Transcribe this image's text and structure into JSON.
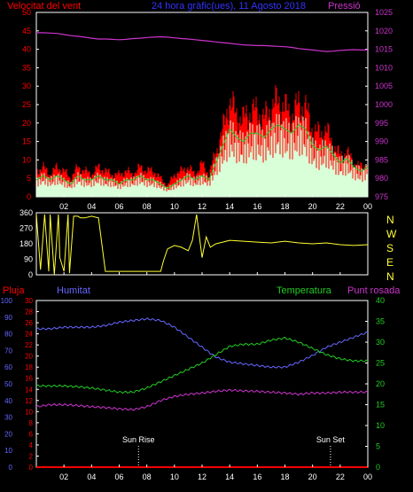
{
  "header": {
    "left_title": "Velocitat del vent",
    "center_title": "24 hora gràfic(ues), 11 Agosto 2018",
    "right_title": "Pressió"
  },
  "colors": {
    "background": "#000000",
    "frame": "#ffffff",
    "wind_gust": "#ff0000",
    "wind_avg": "#d8ffd8",
    "pressure": "#cc33cc",
    "direction": "#ffff33",
    "humidity": "#6666ff",
    "temperature": "#22cc22",
    "dewpoint": "#cc33cc",
    "rain": "#ff0000",
    "title_blue": "#3333ff"
  },
  "chart_data": [
    {
      "type": "line",
      "name": "wind-pressure",
      "xlabel": "",
      "ylabel_left": "",
      "ylabel_right": "",
      "x_ticks": [
        "02",
        "04",
        "06",
        "08",
        "10",
        "12",
        "14",
        "16",
        "18",
        "20",
        "22",
        "00"
      ],
      "ylim_left": [
        0,
        50
      ],
      "y_ticks_left": [
        "0",
        "5",
        "10",
        "15",
        "20",
        "25",
        "30",
        "35",
        "40",
        "45",
        "50"
      ],
      "ylim_right": [
        975,
        1025
      ],
      "y_ticks_right": [
        "975",
        "980",
        "985",
        "990",
        "995",
        "1000",
        "1005",
        "1010",
        "1015",
        "1020",
        "1025"
      ],
      "x_hours": [
        0,
        0.5,
        1,
        1.5,
        2,
        2.5,
        3,
        3.5,
        4,
        4.5,
        5,
        5.5,
        6,
        6.5,
        7,
        7.5,
        8,
        8.5,
        9,
        9.5,
        10,
        10.5,
        11,
        11.5,
        12,
        12.5,
        13,
        13.5,
        14,
        14.5,
        15,
        15.5,
        16,
        16.5,
        17,
        17.5,
        18,
        18.5,
        19,
        19.5,
        20,
        20.5,
        21,
        21.5,
        22,
        22.5,
        23,
        23.5,
        24
      ],
      "series": [
        {
          "role": "wind-gust",
          "values": [
            7,
            8,
            6,
            8,
            7,
            5,
            8,
            7,
            6,
            8,
            7,
            6,
            6,
            7,
            6,
            8,
            7,
            7,
            5,
            3,
            6,
            7,
            8,
            6,
            9,
            6,
            12,
            18,
            26,
            22,
            21,
            23,
            23,
            21,
            24,
            26,
            24,
            22,
            25,
            24,
            18,
            17,
            18,
            14,
            11,
            12,
            9,
            8,
            9
          ]
        },
        {
          "role": "wind-avg",
          "values": [
            4,
            5,
            4,
            5,
            4,
            3,
            5,
            4,
            4,
            5,
            4,
            4,
            3,
            4,
            4,
            5,
            4,
            4,
            3,
            2,
            3,
            4,
            5,
            4,
            5,
            4,
            8,
            12,
            16,
            14,
            13,
            15,
            15,
            14,
            16,
            17,
            16,
            15,
            17,
            16,
            12,
            11,
            12,
            10,
            8,
            9,
            7,
            6,
            7
          ]
        },
        {
          "role": "pressure",
          "values": [
            1019.5,
            1019.5,
            1019.4,
            1019.3,
            1019.0,
            1018.7,
            1018.5,
            1018.3,
            1018.0,
            1017.8,
            1017.8,
            1017.7,
            1017.6,
            1017.7,
            1017.9,
            1018.0,
            1018.2,
            1018.3,
            1018.4,
            1018.3,
            1018.1,
            1017.9,
            1017.8,
            1017.6,
            1017.4,
            1017.2,
            1017.0,
            1016.8,
            1016.6,
            1016.4,
            1016.2,
            1016.1,
            1016.0,
            1016.0,
            1015.9,
            1015.8,
            1015.7,
            1015.5,
            1015.2,
            1015.0,
            1014.8,
            1014.6,
            1014.4,
            1014.5,
            1014.7,
            1014.8,
            1014.9,
            1014.8,
            1014.8
          ]
        }
      ]
    },
    {
      "type": "line",
      "name": "wind-direction",
      "x_ticks": [],
      "ylim": [
        0,
        360
      ],
      "y_ticks": [
        "360",
        "270",
        "180",
        "90",
        "0"
      ],
      "right_labels": [
        "N",
        "W",
        "S",
        "E",
        "N"
      ],
      "x_hours": [
        0,
        0.3,
        0.6,
        0.9,
        1.0,
        1.3,
        1.6,
        1.7,
        2.0,
        2.3,
        2.4,
        2.7,
        3.0,
        3.2,
        3.5,
        4.0,
        4.5,
        5.0,
        5.5,
        6.0,
        6.5,
        7.0,
        7.5,
        8.0,
        8.5,
        9.0,
        9.2,
        9.5,
        10.0,
        10.5,
        11.0,
        11.3,
        11.6,
        12.0,
        12.3,
        12.6,
        13.0,
        13.5,
        14.0,
        15,
        16,
        17,
        18,
        19,
        20,
        21,
        22,
        23,
        24
      ],
      "values": [
        350,
        30,
        350,
        20,
        350,
        0,
        350,
        100,
        20,
        350,
        10,
        340,
        340,
        330,
        330,
        340,
        330,
        20,
        20,
        20,
        20,
        20,
        20,
        20,
        20,
        20,
        80,
        150,
        170,
        160,
        140,
        200,
        350,
        100,
        220,
        160,
        180,
        190,
        200,
        195,
        190,
        185,
        195,
        185,
        180,
        185,
        175,
        170,
        175
      ]
    },
    {
      "type": "line",
      "name": "humidity-temperature",
      "x_ticks": [
        "02",
        "04",
        "06",
        "08",
        "10",
        "12",
        "14",
        "16",
        "18",
        "20",
        "22",
        "00"
      ],
      "ylim_humidity": [
        0,
        100
      ],
      "y_ticks_humidity": [
        "0",
        "10",
        "20",
        "30",
        "40",
        "50",
        "60",
        "70",
        "80",
        "90",
        "100"
      ],
      "ylim_rain": [
        0,
        30
      ],
      "y_ticks_rain": [
        "0",
        "2",
        "4",
        "6",
        "8",
        "10",
        "12",
        "14",
        "16",
        "18",
        "20",
        "22",
        "24",
        "26",
        "28",
        "30"
      ],
      "ylim_temp": [
        0,
        40
      ],
      "y_ticks_temp": [
        "0",
        "5",
        "10",
        "15",
        "20",
        "25",
        "30",
        "35",
        "40"
      ],
      "labels": {
        "rain": "Pluja",
        "humidity": "Humitat",
        "temperature": "Temperatura",
        "dewpoint": "Punt rosada"
      },
      "annotations": [
        {
          "text": "Sun Rise",
          "hour": 7.4
        },
        {
          "text": "Sun Set",
          "hour": 21.3
        }
      ],
      "x_hours": [
        0,
        1,
        2,
        3,
        4,
        5,
        6,
        7,
        8,
        9,
        10,
        11,
        12,
        13,
        14,
        15,
        16,
        17,
        18,
        19,
        20,
        21,
        22,
        23,
        24
      ],
      "series": [
        {
          "role": "rain",
          "values": [
            0,
            0,
            0,
            0,
            0,
            0,
            0,
            0,
            0,
            0,
            0,
            0,
            0,
            0,
            0,
            0,
            0,
            0,
            0,
            0,
            0,
            0,
            0,
            0,
            0
          ]
        },
        {
          "role": "humidity",
          "values": [
            83,
            83,
            84,
            84,
            84,
            85,
            87,
            88,
            89,
            88,
            84,
            78,
            72,
            66,
            63,
            62,
            61,
            60,
            60,
            63,
            67,
            72,
            75,
            78,
            81
          ]
        },
        {
          "role": "temperature",
          "values": [
            19.5,
            19.5,
            19.5,
            19.3,
            19.0,
            18.5,
            18.0,
            18.0,
            19.0,
            20.5,
            22.0,
            23.5,
            25.0,
            27.0,
            29.0,
            29.5,
            29.5,
            30.5,
            31.0,
            30.0,
            28.5,
            27.0,
            26.0,
            25.5,
            25.5
          ]
        },
        {
          "role": "dewpoint",
          "values": [
            14.5,
            15,
            15,
            14.8,
            14.5,
            14.3,
            14.0,
            13.8,
            14.5,
            16.0,
            17.0,
            17.5,
            17.8,
            18.2,
            18.5,
            18.3,
            18.2,
            18.0,
            17.8,
            17.5,
            17.8,
            17.8,
            18.0,
            18.0,
            18.0
          ]
        }
      ]
    }
  ]
}
